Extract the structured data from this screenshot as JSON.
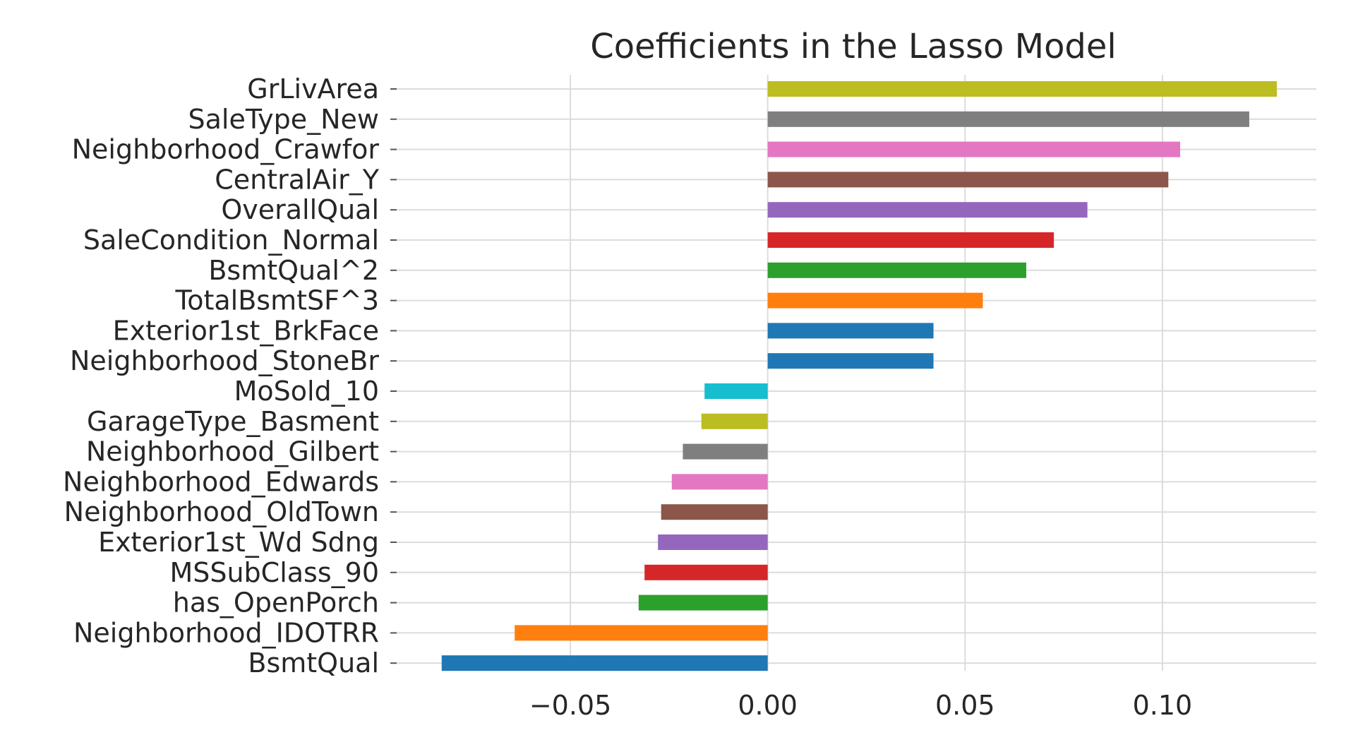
{
  "chart_data": {
    "type": "bar",
    "orientation": "horizontal",
    "title": "Coefficients in the Lasso Model",
    "xlabel": "",
    "ylabel": "",
    "xlim": [
      -0.094,
      0.139
    ],
    "xticks": [
      -0.05,
      0.0,
      0.05,
      0.1
    ],
    "xtick_labels": [
      "−0.05",
      "0.00",
      "0.05",
      "0.10"
    ],
    "grid": true,
    "legend": "none",
    "categories": [
      "GrLivArea",
      "SaleType_New",
      "Neighborhood_Crawfor",
      "CentralAir_Y",
      "OverallQual",
      "SaleCondition_Normal",
      "BsmtQual^2",
      "TotalBsmtSF^3",
      "Exterior1st_BrkFace",
      "Neighborhood_StoneBr",
      "MoSold_10",
      "GarageType_Basment",
      "Neighborhood_Gilbert",
      "Neighborhood_Edwards",
      "Neighborhood_OldTown",
      "Exterior1st_Wd Sdng",
      "MSSubClass_90",
      "has_OpenPorch",
      "Neighborhood_IDOTRR",
      "BsmtQual"
    ],
    "values": [
      0.129,
      0.122,
      0.1045,
      0.1015,
      0.081,
      0.0725,
      0.0655,
      0.0545,
      0.042,
      0.042,
      -0.016,
      -0.0168,
      -0.0215,
      -0.0243,
      -0.027,
      -0.0278,
      -0.0312,
      -0.0327,
      -0.0641,
      -0.0826
    ],
    "colors": [
      "#bcbd22",
      "#7f7f7f",
      "#e377c2",
      "#8c564b",
      "#9467bd",
      "#d62728",
      "#2ca02c",
      "#ff7f0e",
      "#1f77b4",
      "#1f77b4",
      "#17becf",
      "#bcbd22",
      "#7f7f7f",
      "#e377c2",
      "#8c564b",
      "#9467bd",
      "#d62728",
      "#2ca02c",
      "#ff7f0e",
      "#1f77b4"
    ]
  }
}
